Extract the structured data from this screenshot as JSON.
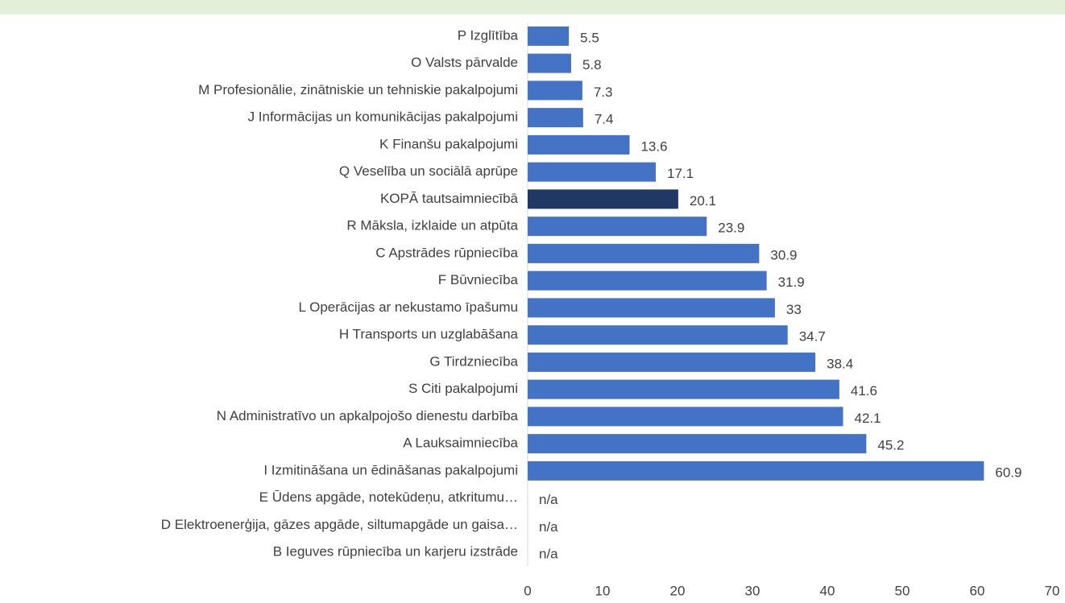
{
  "chart_data": {
    "type": "bar",
    "orientation": "horizontal",
    "categories": [
      "P Izglītība",
      "O Valsts pārvalde ",
      "M Profesionālie, zinātniskie un tehniskie pakalpojumi",
      "J Informācijas un komunikācijas pakalpojumi",
      "K Finanšu pakalpojumi",
      "Q Veselība un sociālā aprūpe",
      "KOPĀ tautsaimniecībā",
      "R Māksla, izklaide un atpūta",
      "C Apstrādes rūpniecība",
      "F Būvniecība",
      "L Operācijas ar nekustamo īpašumu",
      "H Transports un uzglabāšana",
      "G Tirdzniecība",
      "S Citi pakalpojumi",
      "N Administratīvo un apkalpojošo dienestu darbība",
      "A Lauksaimniecība",
      "I Izmitināšana un ēdināšanas pakalpojumi",
      "E Ūdens apgāde, notekūdeņu, atkritumu…",
      "D Elektroenerģija, gāzes apgāde, siltumapgāde un gaisa…",
      "B Ieguves rūpniecība un karjeru izstrāde"
    ],
    "values": [
      5.5,
      5.8,
      7.3,
      7.4,
      13.6,
      17.1,
      20.1,
      23.9,
      30.9,
      31.9,
      33,
      34.7,
      38.4,
      41.6,
      42.1,
      45.2,
      60.9,
      null,
      null,
      null
    ],
    "value_labels": [
      "5.5",
      "5.8",
      "7.3",
      "7.4",
      "13.6",
      "17.1",
      "20.1",
      "23.9",
      "30.9",
      "31.9",
      "33",
      "34.7",
      "38.4",
      "41.6",
      "42.1",
      "45.2",
      "60.9",
      "n/a",
      "n/a",
      "n/a"
    ],
    "colors": [
      "#4472c4",
      "#4472c4",
      "#4472c4",
      "#4472c4",
      "#4472c4",
      "#4472c4",
      "#203864",
      "#4472c4",
      "#4472c4",
      "#4472c4",
      "#4472c4",
      "#4472c4",
      "#4472c4",
      "#4472c4",
      "#4472c4",
      "#4472c4",
      "#4472c4",
      "#4472c4",
      "#4472c4",
      "#4472c4"
    ],
    "xlim": [
      0,
      70
    ],
    "xticks": [
      0,
      10,
      20,
      30,
      40,
      50,
      60,
      70
    ],
    "grid": false
  }
}
